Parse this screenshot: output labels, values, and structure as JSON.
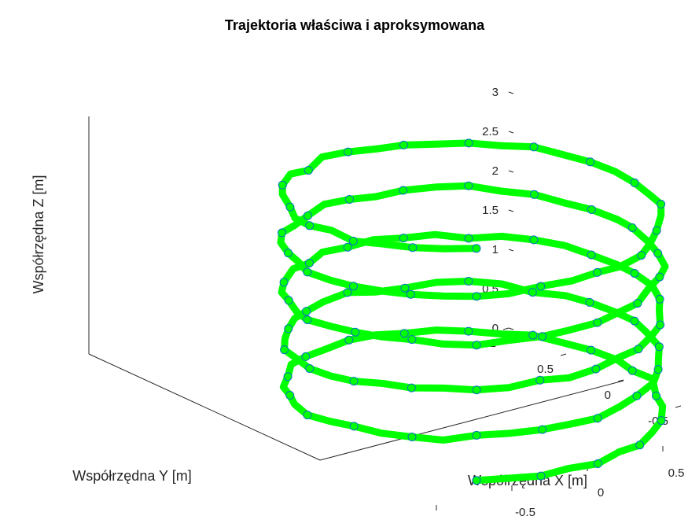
{
  "chart_data": {
    "type": "line",
    "title": "Trajektoria właściwa i aproksymowana",
    "xlabel": "Współrzędna X [m]",
    "ylabel": "Współrzędna Y [m]",
    "zlabel": "Współrzędna Z [m]",
    "xlim": [
      -1,
      1
    ],
    "ylim": [
      -1,
      1
    ],
    "zlim": [
      0,
      3
    ],
    "xticks": [
      "-1",
      "-0.5",
      "0",
      "0.5",
      "1"
    ],
    "yticks": [
      "-1",
      "-0.5",
      "0",
      "0.5",
      "1"
    ],
    "zticks": [
      "0",
      "0.5",
      "1",
      "1.5",
      "2",
      "2.5",
      "3"
    ],
    "grid": false,
    "series": [
      {
        "style": "thick-line",
        "color": "#00ff00",
        "marker": "none"
      },
      {
        "style": "markers",
        "color": "#0072bd",
        "marker": "circle"
      }
    ],
    "helix": {
      "turns": 5,
      "z_range": [
        0,
        3
      ],
      "radius": 1,
      "center": [
        0,
        0
      ]
    }
  },
  "colors": {
    "line": "#00ff00",
    "marker": "#0072bd",
    "axis": "#262626"
  }
}
